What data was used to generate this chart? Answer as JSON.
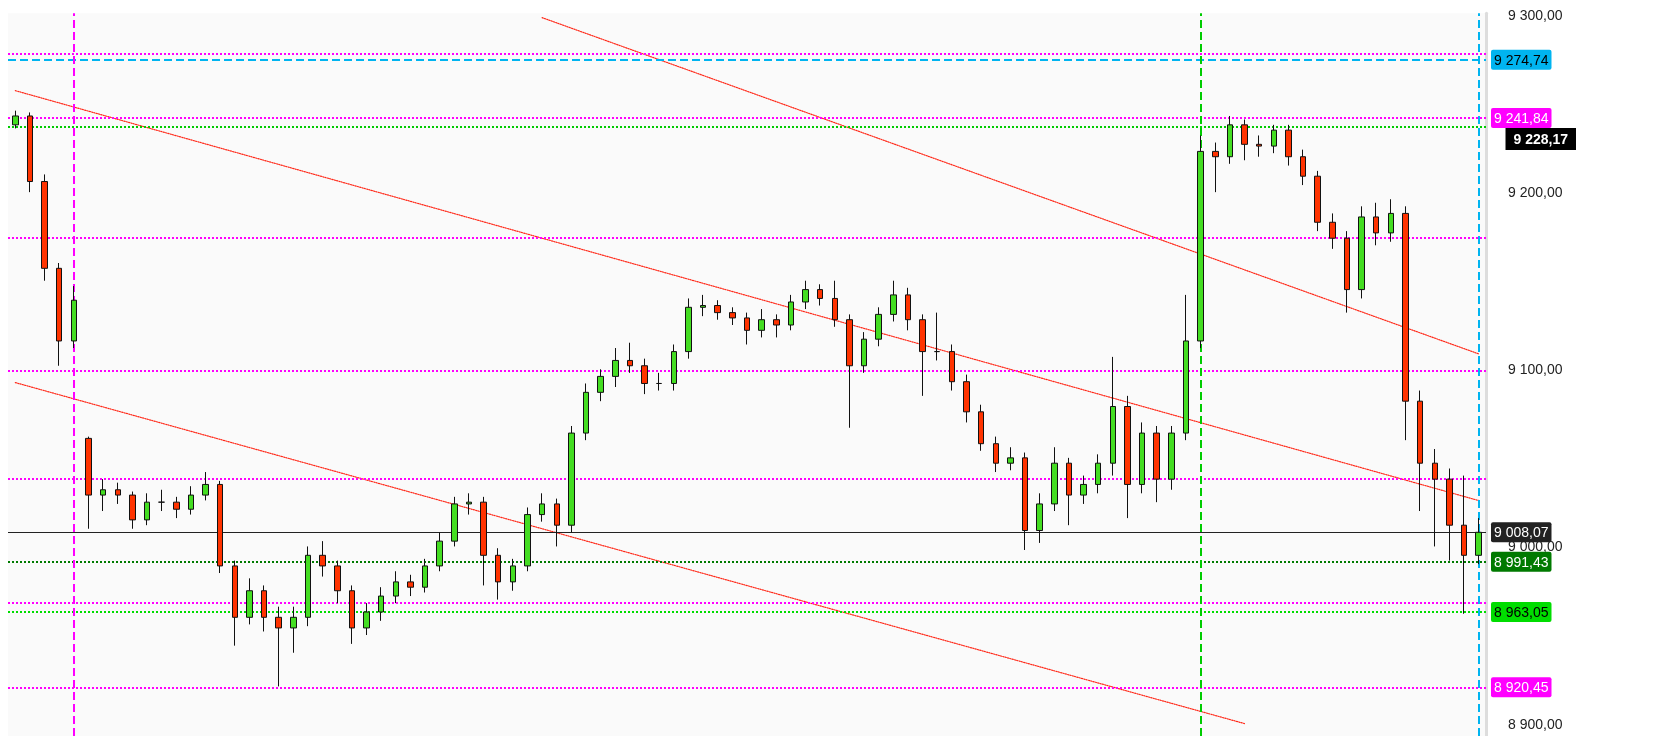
{
  "chart_data": {
    "type": "candlestick",
    "categories": [
      null,
      null,
      null,
      null,
      null,
      null,
      null,
      null,
      null,
      null,
      null,
      null,
      null,
      null,
      null,
      null,
      null,
      null,
      null,
      null,
      null,
      null,
      null,
      null,
      null,
      null,
      null,
      null,
      null,
      null,
      null,
      null,
      null,
      null,
      null,
      null,
      null,
      null,
      null,
      null,
      null,
      null,
      null,
      null,
      null,
      null,
      null,
      null,
      null,
      null,
      null,
      null,
      null,
      null,
      null,
      null,
      null,
      null,
      null,
      null,
      null,
      null,
      null,
      null,
      null,
      null,
      null,
      null,
      null,
      null,
      null,
      null,
      null,
      null,
      null,
      null,
      null,
      null,
      null,
      null,
      null,
      null,
      null,
      null,
      null,
      null,
      null,
      null,
      null,
      null,
      null,
      null,
      null,
      null,
      null,
      null,
      null,
      null,
      null,
      null,
      null
    ],
    "ohlc": [
      [
        9238,
        9246,
        9236,
        9243
      ],
      [
        9243,
        9245,
        9200,
        9206
      ],
      [
        9206,
        9210,
        9150,
        9157
      ],
      [
        9157,
        9160,
        9102,
        9116
      ],
      [
        9116,
        9147,
        9112,
        9139
      ],
      [
        9061,
        9062,
        9010,
        9029
      ],
      [
        9029,
        9038,
        9020,
        9032
      ],
      [
        9032,
        9036,
        9024,
        9029
      ],
      [
        9029,
        9031,
        9010,
        9015
      ],
      [
        9015,
        9030,
        9012,
        9025
      ],
      [
        9025,
        9032,
        9020,
        9025
      ],
      [
        9025,
        9028,
        9016,
        9021
      ],
      [
        9021,
        9034,
        9018,
        9029
      ],
      [
        9029,
        9042,
        9026,
        9035
      ],
      [
        9035,
        9037,
        8985,
        8989
      ],
      [
        8989,
        8992,
        8944,
        8960
      ],
      [
        8960,
        8982,
        8956,
        8975
      ],
      [
        8975,
        8978,
        8952,
        8960
      ],
      [
        8960,
        8966,
        8921,
        8954
      ],
      [
        8954,
        8966,
        8940,
        8960
      ],
      [
        8960,
        9000,
        8955,
        8995
      ],
      [
        8995,
        9003,
        8983,
        8989
      ],
      [
        8989,
        8992,
        8968,
        8975
      ],
      [
        8975,
        8978,
        8945,
        8954
      ],
      [
        8954,
        8968,
        8950,
        8963
      ],
      [
        8963,
        8977,
        8958,
        8972
      ],
      [
        8972,
        8986,
        8968,
        8980
      ],
      [
        8980,
        8984,
        8972,
        8977
      ],
      [
        8977,
        8993,
        8974,
        8989
      ],
      [
        8989,
        9008,
        8986,
        9003
      ],
      [
        9003,
        9028,
        9000,
        9024
      ],
      [
        9024,
        9030,
        9018,
        9025
      ],
      [
        9025,
        9028,
        8978,
        8995
      ],
      [
        8995,
        8999,
        8970,
        8980
      ],
      [
        8980,
        8993,
        8975,
        8989
      ],
      [
        8989,
        9022,
        8986,
        9018
      ],
      [
        9018,
        9030,
        9014,
        9024
      ],
      [
        9024,
        9027,
        9000,
        9012
      ],
      [
        9012,
        9068,
        9008,
        9064
      ],
      [
        9064,
        9092,
        9060,
        9087
      ],
      [
        9087,
        9100,
        9082,
        9096
      ],
      [
        9096,
        9112,
        9090,
        9105
      ],
      [
        9105,
        9115,
        9098,
        9102
      ],
      [
        9102,
        9106,
        9086,
        9092
      ],
      [
        9092,
        9098,
        9088,
        9092
      ],
      [
        9092,
        9114,
        9088,
        9110
      ],
      [
        9110,
        9140,
        9106,
        9135
      ],
      [
        9135,
        9142,
        9130,
        9136
      ],
      [
        9136,
        9139,
        9128,
        9132
      ],
      [
        9132,
        9135,
        9125,
        9129
      ],
      [
        9129,
        9132,
        9114,
        9122
      ],
      [
        9122,
        9134,
        9118,
        9128
      ],
      [
        9128,
        9131,
        9118,
        9125
      ],
      [
        9125,
        9142,
        9122,
        9138
      ],
      [
        9138,
        9150,
        9134,
        9145
      ],
      [
        9145,
        9148,
        9136,
        9140
      ],
      [
        9140,
        9150,
        9124,
        9128
      ],
      [
        9128,
        9131,
        9067,
        9102
      ],
      [
        9102,
        9121,
        9098,
        9117
      ],
      [
        9117,
        9135,
        9113,
        9131
      ],
      [
        9131,
        9150,
        9127,
        9142
      ],
      [
        9142,
        9146,
        9122,
        9128
      ],
      [
        9128,
        9131,
        9085,
        9110
      ],
      [
        9110,
        9132,
        9105,
        9110
      ],
      [
        9110,
        9114,
        9088,
        9093
      ],
      [
        9093,
        9097,
        9070,
        9076
      ],
      [
        9076,
        9080,
        9054,
        9058
      ],
      [
        9058,
        9062,
        9042,
        9047
      ],
      [
        9047,
        9056,
        9043,
        9050
      ],
      [
        9050,
        9053,
        8998,
        9009
      ],
      [
        9009,
        9030,
        9002,
        9024
      ],
      [
        9024,
        9056,
        9020,
        9047
      ],
      [
        9047,
        9050,
        9012,
        9029
      ],
      [
        9029,
        9040,
        9024,
        9035
      ],
      [
        9035,
        9052,
        9030,
        9047
      ],
      [
        9047,
        9107,
        9040,
        9079
      ],
      [
        9079,
        9085,
        9016,
        9035
      ],
      [
        9035,
        9070,
        9030,
        9064
      ],
      [
        9064,
        9068,
        9025,
        9038
      ],
      [
        9038,
        9068,
        9032,
        9064
      ],
      [
        9064,
        9142,
        9060,
        9116
      ],
      [
        9116,
        9232,
        9112,
        9223
      ],
      [
        9223,
        9228,
        9200,
        9220
      ],
      [
        9220,
        9243,
        9216,
        9238
      ],
      [
        9238,
        9241,
        9218,
        9227
      ],
      [
        9227,
        9232,
        9220,
        9226
      ],
      [
        9226,
        9238,
        9222,
        9235
      ],
      [
        9235,
        9238,
        9215,
        9220
      ],
      [
        9220,
        9224,
        9204,
        9209
      ],
      [
        9209,
        9212,
        9178,
        9183
      ],
      [
        9183,
        9188,
        9168,
        9174
      ],
      [
        9174,
        9178,
        9132,
        9145
      ],
      [
        9145,
        9192,
        9140,
        9186
      ],
      [
        9186,
        9194,
        9170,
        9177
      ],
      [
        9177,
        9196,
        9172,
        9188
      ],
      [
        9188,
        9192,
        9060,
        9082
      ],
      [
        9082,
        9088,
        9020,
        9047
      ],
      [
        9047,
        9055,
        9000,
        9038
      ],
      [
        9038,
        9044,
        8992,
        9012
      ],
      [
        9012,
        9040,
        8962,
        8995
      ],
      [
        8995,
        9016,
        8990,
        9008
      ]
    ],
    "series": [
      {
        "type": "line",
        "color": "#ff2a1a",
        "line_style": "dotted",
        "marker": "none",
        "values": [
          null,
          null,
          null,
          null,
          null,
          null,
          null,
          null,
          null,
          null,
          null,
          null,
          null,
          null,
          null,
          null,
          null,
          null,
          null,
          null,
          null,
          null,
          null,
          null,
          null,
          null,
          null,
          null,
          null,
          null,
          null,
          null,
          null,
          null,
          null,
          null,
          9298.5,
          null,
          null,
          null,
          null,
          null,
          null,
          null,
          null,
          null,
          null,
          null,
          null,
          null,
          null,
          null,
          null,
          null,
          null,
          null,
          null,
          null,
          null,
          null,
          null,
          null,
          null,
          null,
          null,
          null,
          null,
          null,
          null,
          null,
          null,
          null,
          null,
          null,
          null,
          null,
          null,
          null,
          null,
          null,
          null,
          null,
          null,
          null,
          null,
          null,
          null,
          null,
          null,
          null,
          null,
          null,
          null,
          null,
          null,
          null,
          null,
          null,
          null,
          null,
          9108.7
        ]
      },
      {
        "type": "line",
        "color": "#ff2a1a",
        "line_style": "dotted",
        "marker": "none",
        "values": [
          9257.3,
          null,
          null,
          null,
          null,
          null,
          null,
          null,
          null,
          null,
          null,
          null,
          null,
          null,
          null,
          null,
          null,
          null,
          null,
          null,
          null,
          null,
          null,
          null,
          null,
          null,
          null,
          null,
          null,
          null,
          null,
          null,
          null,
          null,
          null,
          null,
          null,
          null,
          null,
          null,
          null,
          null,
          null,
          null,
          null,
          null,
          null,
          null,
          null,
          null,
          null,
          null,
          null,
          null,
          null,
          null,
          null,
          null,
          null,
          null,
          null,
          null,
          null,
          null,
          null,
          null,
          null,
          null,
          null,
          null,
          null,
          null,
          null,
          null,
          null,
          null,
          null,
          null,
          null,
          null,
          null,
          null,
          null,
          null,
          null,
          null,
          null,
          null,
          null,
          null,
          null,
          null,
          null,
          null,
          null,
          null,
          null,
          null,
          null,
          null,
          9025.9
        ]
      },
      {
        "type": "line",
        "color": "#ff2a1a",
        "line_style": "dotted",
        "marker": "none",
        "values": [
          9092.5,
          null,
          null,
          null,
          null,
          null,
          null,
          null,
          null,
          null,
          null,
          null,
          null,
          null,
          null,
          null,
          null,
          null,
          null,
          null,
          null,
          null,
          null,
          null,
          null,
          null,
          null,
          null,
          null,
          null,
          null,
          null,
          null,
          null,
          null,
          null,
          null,
          null,
          null,
          null,
          null,
          null,
          null,
          null,
          null,
          null,
          null,
          null,
          null,
          null,
          null,
          null,
          null,
          null,
          null,
          null,
          null,
          null,
          null,
          null,
          null,
          null,
          null,
          null,
          null,
          null,
          null,
          null,
          null,
          null,
          null,
          null,
          null,
          null,
          null,
          null,
          null,
          null,
          null,
          null,
          null,
          null,
          null,
          null,
          8900,
          null,
          null,
          null,
          null,
          null,
          null,
          null,
          null,
          null,
          null,
          null,
          null,
          null,
          null,
          null,
          null
        ]
      }
    ],
    "ylim": [
      8893,
      9301
    ],
    "yticks": [
      {
        "value": 8900,
        "label": "8 900,00"
      },
      {
        "value": 9000,
        "label": "9 000,00"
      },
      {
        "value": 9100,
        "label": "9 100,00"
      },
      {
        "value": 9200,
        "label": "9 200,00"
      },
      {
        "value": 9300,
        "label": "9 300,00"
      }
    ],
    "tick_labels": "y",
    "ref_lines": [
      {
        "axis": "y",
        "value": 9278,
        "color": "#ff00ff",
        "line_style": "dotted"
      },
      {
        "axis": "y",
        "value": 9274.74,
        "label": "9 274,74",
        "color": "#00b4f0",
        "line_style": "dashed"
      },
      {
        "axis": "y",
        "value": 9241.84,
        "label": "9 241,84",
        "color": "#ff00ff",
        "line_style": "dotted"
      },
      {
        "axis": "y",
        "value": 9237,
        "color": "#00cc00",
        "line_style": "dotted"
      },
      {
        "axis": "y",
        "value": 9174,
        "color": "#ff00ff",
        "line_style": "dotted"
      },
      {
        "axis": "y",
        "value": 9099,
        "color": "#ff00ff",
        "line_style": "dotted"
      },
      {
        "axis": "y",
        "value": 9038,
        "color": "#ff00ff",
        "line_style": "dotted"
      },
      {
        "axis": "y",
        "value": 9008.07,
        "label": "9 008,07",
        "color": "#222222",
        "line_style": "solid"
      },
      {
        "axis": "y",
        "value": 8991.43,
        "label": "8 991,43",
        "color": "#007a00",
        "line_style": "dotted"
      },
      {
        "axis": "y",
        "value": 8968,
        "color": "#ff00ff",
        "line_style": "dotted"
      },
      {
        "axis": "y",
        "value": 8963.05,
        "label": "8 963,05",
        "color": "#00dd00",
        "line_style": "dotted"
      },
      {
        "axis": "y",
        "value": 8920.45,
        "label": "8 920,45",
        "color": "#ff00ff",
        "line_style": "dotted"
      }
    ],
    "annotations": [
      "9 228,17"
    ]
  }
}
